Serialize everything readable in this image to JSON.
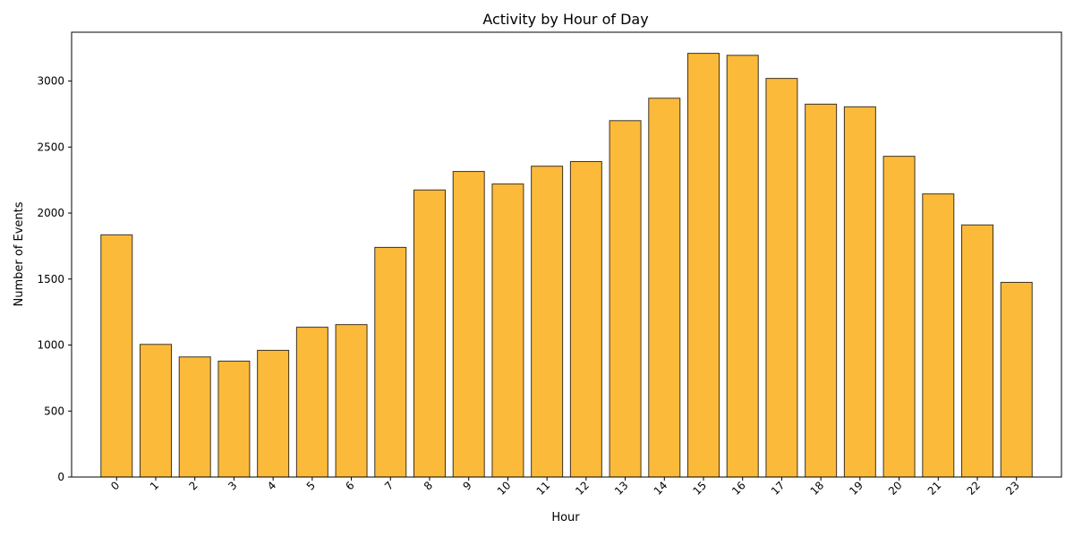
{
  "chart_data": {
    "type": "bar",
    "title": "Activity by Hour of Day",
    "xlabel": "Hour",
    "ylabel": "Number of Events",
    "categories": [
      "0",
      "1",
      "2",
      "3",
      "4",
      "5",
      "6",
      "7",
      "8",
      "9",
      "10",
      "11",
      "12",
      "13",
      "14",
      "15",
      "16",
      "17",
      "18",
      "19",
      "20",
      "21",
      "22",
      "23"
    ],
    "values": [
      1835,
      1005,
      910,
      878,
      960,
      1135,
      1155,
      1740,
      2175,
      2315,
      2220,
      2355,
      2390,
      2700,
      2870,
      3210,
      3195,
      3020,
      2825,
      2805,
      2430,
      2145,
      1910,
      1475
    ],
    "yticks": [
      0,
      500,
      1000,
      1500,
      2000,
      2500,
      3000
    ],
    "ylim": [
      0,
      3370
    ],
    "grid": false,
    "colors": {
      "bar_fill": "#fcba3b",
      "bar_edge": "#3d3320"
    }
  }
}
